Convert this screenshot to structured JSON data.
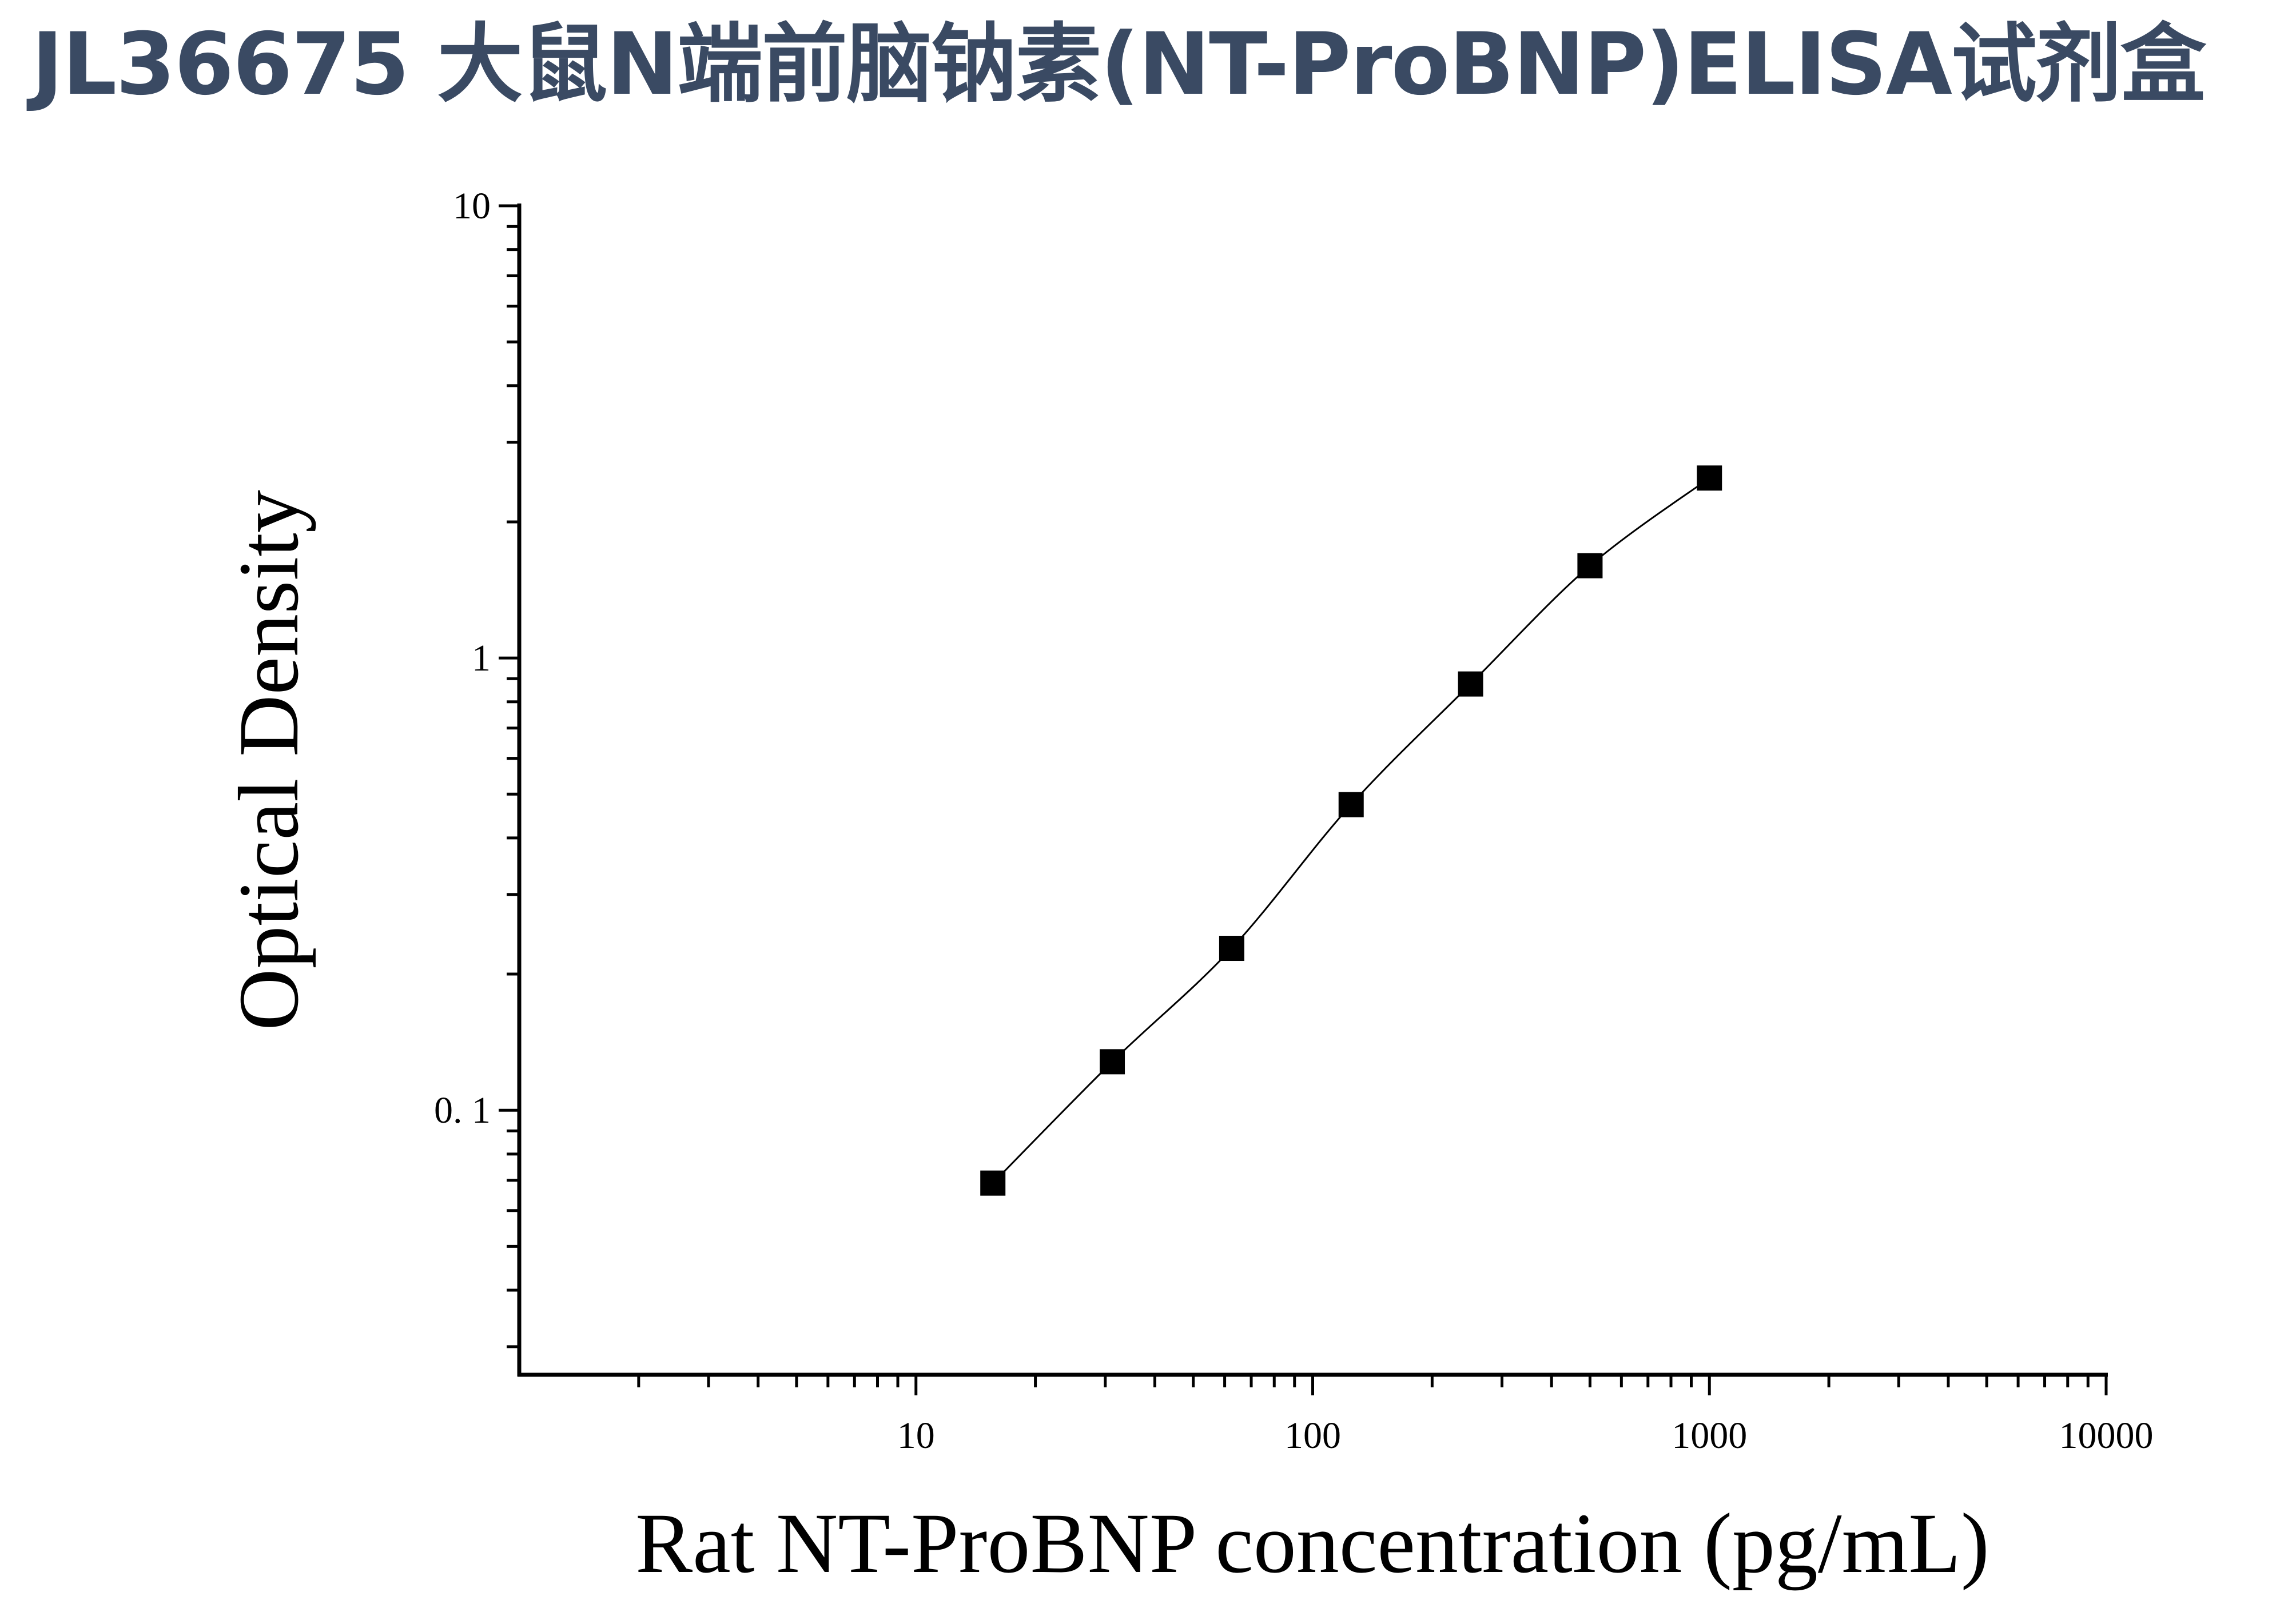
{
  "page": {
    "title": "JL36675 大鼠N端前脑钠素(NT-ProBNP)ELISA试剂盒"
  },
  "colors": {
    "title": "#3a4a63",
    "axes": "#000000",
    "markers": "#000000"
  },
  "chart_data": {
    "type": "scatter",
    "xlabel": "Rat NT-ProBNP concentration (pg/mL)",
    "ylabel": "Optical Density",
    "xscale": "log",
    "yscale": "log",
    "xlim": [
      1,
      10000
    ],
    "ylim": [
      0.026,
      10
    ],
    "x_ticks": [
      {
        "value": 10,
        "label": "10"
      },
      {
        "value": 100,
        "label": "100"
      },
      {
        "value": 1000,
        "label": "1000"
      },
      {
        "value": 10000,
        "label": "10000"
      }
    ],
    "y_ticks": [
      {
        "value": 0.1,
        "label": "0. 1"
      },
      {
        "value": 1,
        "label": "1"
      },
      {
        "value": 10,
        "label": "10"
      }
    ],
    "grid": false,
    "legend": "none",
    "series": [
      {
        "marker": "square",
        "fit": "smooth curve",
        "points": [
          {
            "x": 15.625,
            "y": 0.069
          },
          {
            "x": 31.25,
            "y": 0.128
          },
          {
            "x": 62.5,
            "y": 0.228
          },
          {
            "x": 125,
            "y": 0.474
          },
          {
            "x": 250,
            "y": 0.876
          },
          {
            "x": 500,
            "y": 1.6
          },
          {
            "x": 1000,
            "y": 2.5
          }
        ]
      }
    ]
  }
}
